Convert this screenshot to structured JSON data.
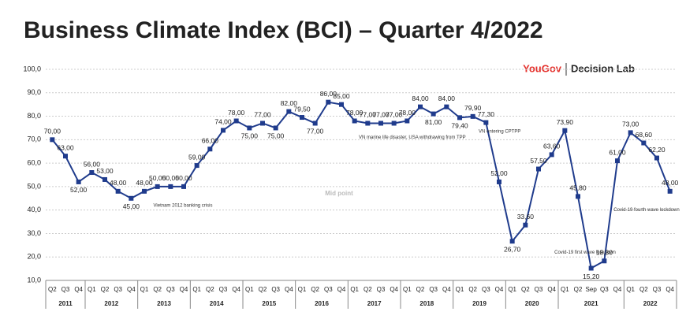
{
  "chart_data": {
    "type": "line",
    "title": "Business Climate Index (BCI) – Quarter 4/2022",
    "brand": "YouGov",
    "brand2": "Decision Lab",
    "categories": [
      "Q2",
      "Q3",
      "Q4",
      "Q1",
      "Q2",
      "Q3",
      "Q4",
      "Q1",
      "Q2",
      "Q3",
      "Q4",
      "Q1",
      "Q2",
      "Q3",
      "Q4",
      "Q1",
      "Q2",
      "Q3",
      "Q4",
      "Q1",
      "Q2",
      "Q3",
      "Q4",
      "Q1",
      "Q2",
      "Q3",
      "Q4",
      "Q1",
      "Q2",
      "Q3",
      "Q4",
      "Q1",
      "Q2",
      "Q3",
      "Q4",
      "Q1",
      "Q2",
      "Q3",
      "Q4",
      "Q1",
      "Q2",
      "Sep",
      "Q3",
      "Q4",
      "Q1",
      "Q2",
      "Q3",
      "Q4"
    ],
    "years": [
      "2011",
      "2012",
      "2013",
      "2014",
      "2015",
      "2016",
      "2017",
      "2018",
      "2019",
      "2020",
      "2021",
      "2022"
    ],
    "series": [
      {
        "name": "BCI",
        "color": "#1f3b8c",
        "values": [
          70,
          63,
          52,
          56,
          53,
          48,
          45,
          48,
          50,
          50,
          50,
          59,
          66,
          74,
          78,
          75,
          77,
          75,
          82,
          79.5,
          77,
          86,
          85,
          78,
          77,
          77,
          77,
          78,
          84,
          81,
          84,
          79.4,
          79.9,
          77.3,
          52,
          26.7,
          33.6,
          57.5,
          63.6,
          73.9,
          45.8,
          15.2,
          18.3,
          61,
          73,
          68.6,
          62.2,
          48
        ],
        "value_labels": [
          "70,00",
          "63,00",
          "52,00",
          "56,00",
          "53,00",
          "48,00",
          "45,00",
          "48,00",
          "50,00",
          "50,00",
          "50,00",
          "59,00",
          "66,00",
          "74,00",
          "78,00",
          "75,00",
          "77,00",
          "75,00",
          "82,00",
          "79,50",
          "77,00",
          "86,00",
          "85,00",
          "78,00",
          "77,00",
          "77,00",
          "77,00",
          "78,00",
          "84,00",
          "81,00",
          "84,00",
          "79,40",
          "79,90",
          "77,30",
          "52,00",
          "26,70",
          "33,60",
          "57,50",
          "63,60",
          "73,90",
          "45,80",
          "15,20",
          "18,30",
          "61,00",
          "73,00",
          "68,60",
          "62,20",
          "48,00"
        ]
      }
    ],
    "ylim": [
      10,
      100
    ],
    "yticks": [
      {
        "value": 10,
        "label": "10,0"
      },
      {
        "value": 20,
        "label": "20,0"
      },
      {
        "value": 30,
        "label": "30,0"
      },
      {
        "value": 40,
        "label": "40,0"
      },
      {
        "value": 50,
        "label": "50,0"
      },
      {
        "value": 60,
        "label": "60,0"
      },
      {
        "value": 70,
        "label": "70,0"
      },
      {
        "value": 80,
        "label": "80,0"
      },
      {
        "value": 90,
        "label": "90,0"
      },
      {
        "value": 100,
        "label": "100,0"
      }
    ],
    "grid": true,
    "annotations": [
      "Mid point",
      "Vietnam 2012 banking crisis",
      "VN marine life disaster, USA withdrawing from TPP",
      "VN entering CPTPP",
      "Covid-19 first wave lockdown",
      "Covid-19 fourth wave lockdown"
    ]
  }
}
